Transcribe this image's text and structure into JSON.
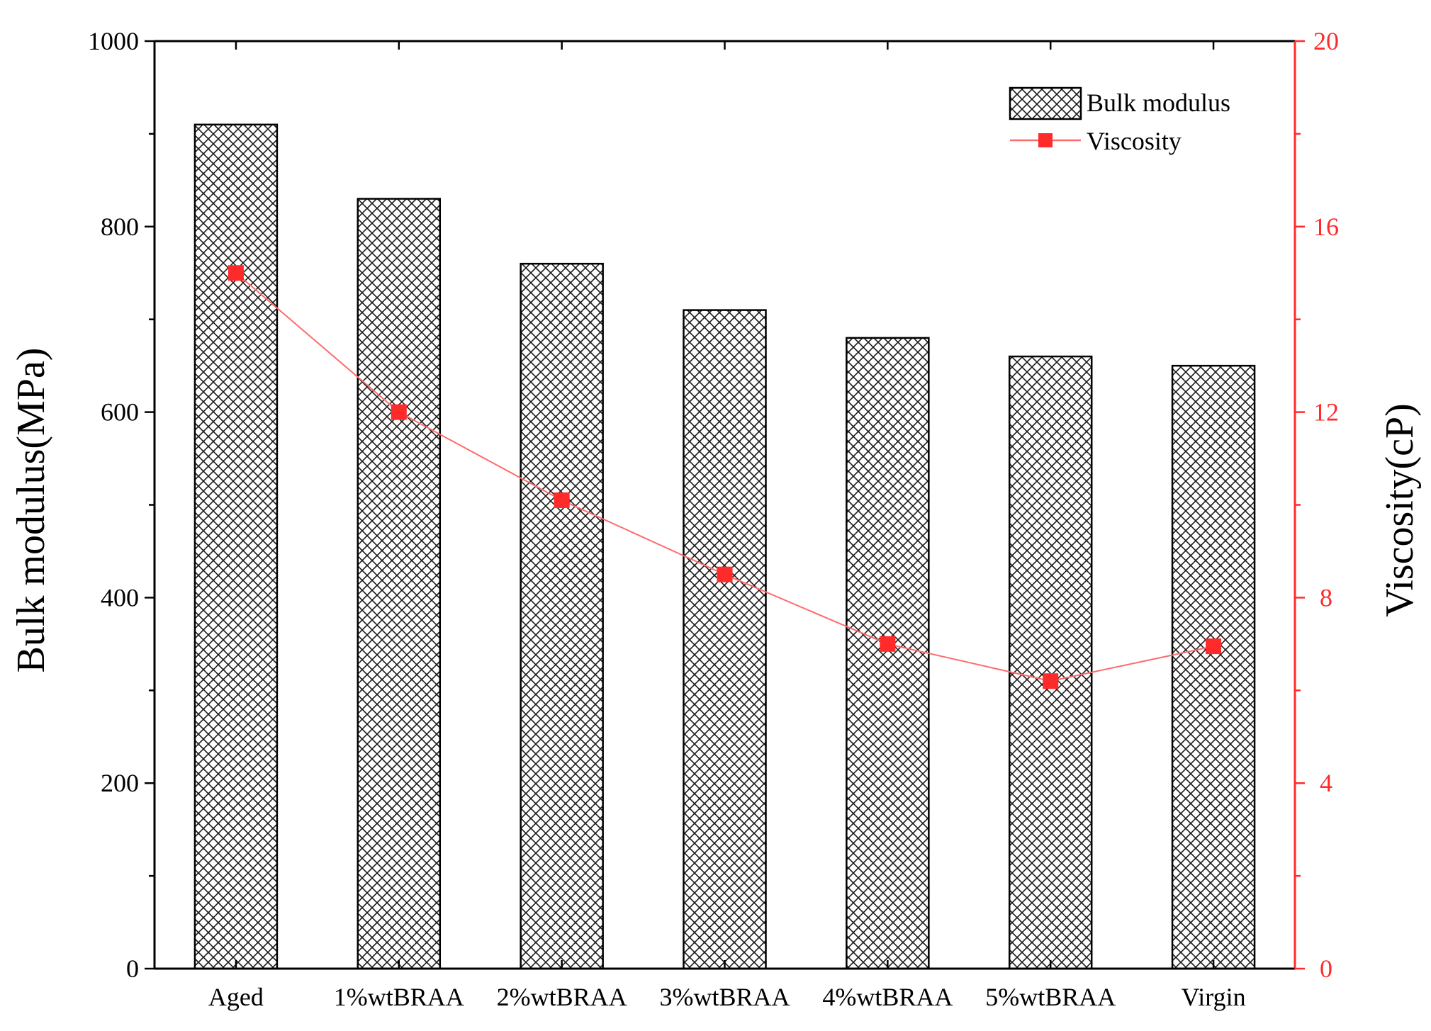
{
  "chart_data": {
    "type": "bar",
    "categories": [
      "Aged",
      "1%wtBRAA",
      "2%wtBRAA",
      "3%wtBRAA",
      "4%wtBRAA",
      "5%wtBRAA",
      "Virgin"
    ],
    "series": [
      {
        "name": "Bulk modulus",
        "kind": "bar",
        "axis": "left",
        "values": [
          910,
          830,
          760,
          710,
          680,
          660,
          650
        ]
      },
      {
        "name": "Viscosity",
        "kind": "line",
        "axis": "right",
        "values": [
          15.0,
          12.0,
          10.1,
          8.5,
          7.0,
          6.2,
          6.95
        ]
      }
    ],
    "xlabel": "",
    "ylabel": "Bulk modulus(MPa)",
    "y2label": "Viscosity(cP)",
    "ylim": [
      0,
      1000
    ],
    "y2lim": [
      0,
      20
    ],
    "yticks": [
      0,
      200,
      400,
      600,
      800,
      1000
    ],
    "y2ticks": [
      0,
      4,
      8,
      12,
      16,
      20
    ],
    "legend_position": "top-right",
    "colors": {
      "bar_edge": "#000000",
      "bar_hatch": "#000000",
      "line": "#ff6b6b",
      "marker": "#ff2a2a",
      "right_axis": "#ff2a2a"
    }
  }
}
